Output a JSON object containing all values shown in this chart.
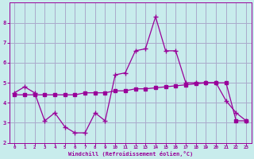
{
  "xlabel": "Windchill (Refroidissement éolien,°C)",
  "bg_color": "#c8ecec",
  "line_color": "#990099",
  "grid_color": "#aaaacc",
  "x_data": [
    0,
    1,
    2,
    3,
    4,
    5,
    6,
    7,
    8,
    9,
    10,
    11,
    12,
    13,
    14,
    15,
    16,
    17,
    18,
    19,
    20,
    21,
    22,
    23
  ],
  "y_line1": [
    4.5,
    4.8,
    4.5,
    3.1,
    3.5,
    2.8,
    2.5,
    2.5,
    3.5,
    3.1,
    5.4,
    5.5,
    6.6,
    6.7,
    8.3,
    6.6,
    6.6,
    5.0,
    5.0,
    5.0,
    5.0,
    4.1,
    3.5,
    3.1
  ],
  "y_line2": [
    4.4,
    4.4,
    4.4,
    4.4,
    4.4,
    4.4,
    4.4,
    4.5,
    4.5,
    4.5,
    4.6,
    4.6,
    4.7,
    4.7,
    4.75,
    4.8,
    4.85,
    4.9,
    4.95,
    5.0,
    5.0,
    5.0,
    3.1,
    3.1
  ],
  "ylim": [
    2.0,
    9.0
  ],
  "xlim": [
    -0.5,
    23.5
  ],
  "yticks": [
    2,
    3,
    4,
    5,
    6,
    7,
    8
  ],
  "xticks": [
    0,
    1,
    2,
    3,
    4,
    5,
    6,
    7,
    8,
    9,
    10,
    11,
    12,
    13,
    14,
    15,
    16,
    17,
    18,
    19,
    20,
    21,
    22,
    23
  ]
}
